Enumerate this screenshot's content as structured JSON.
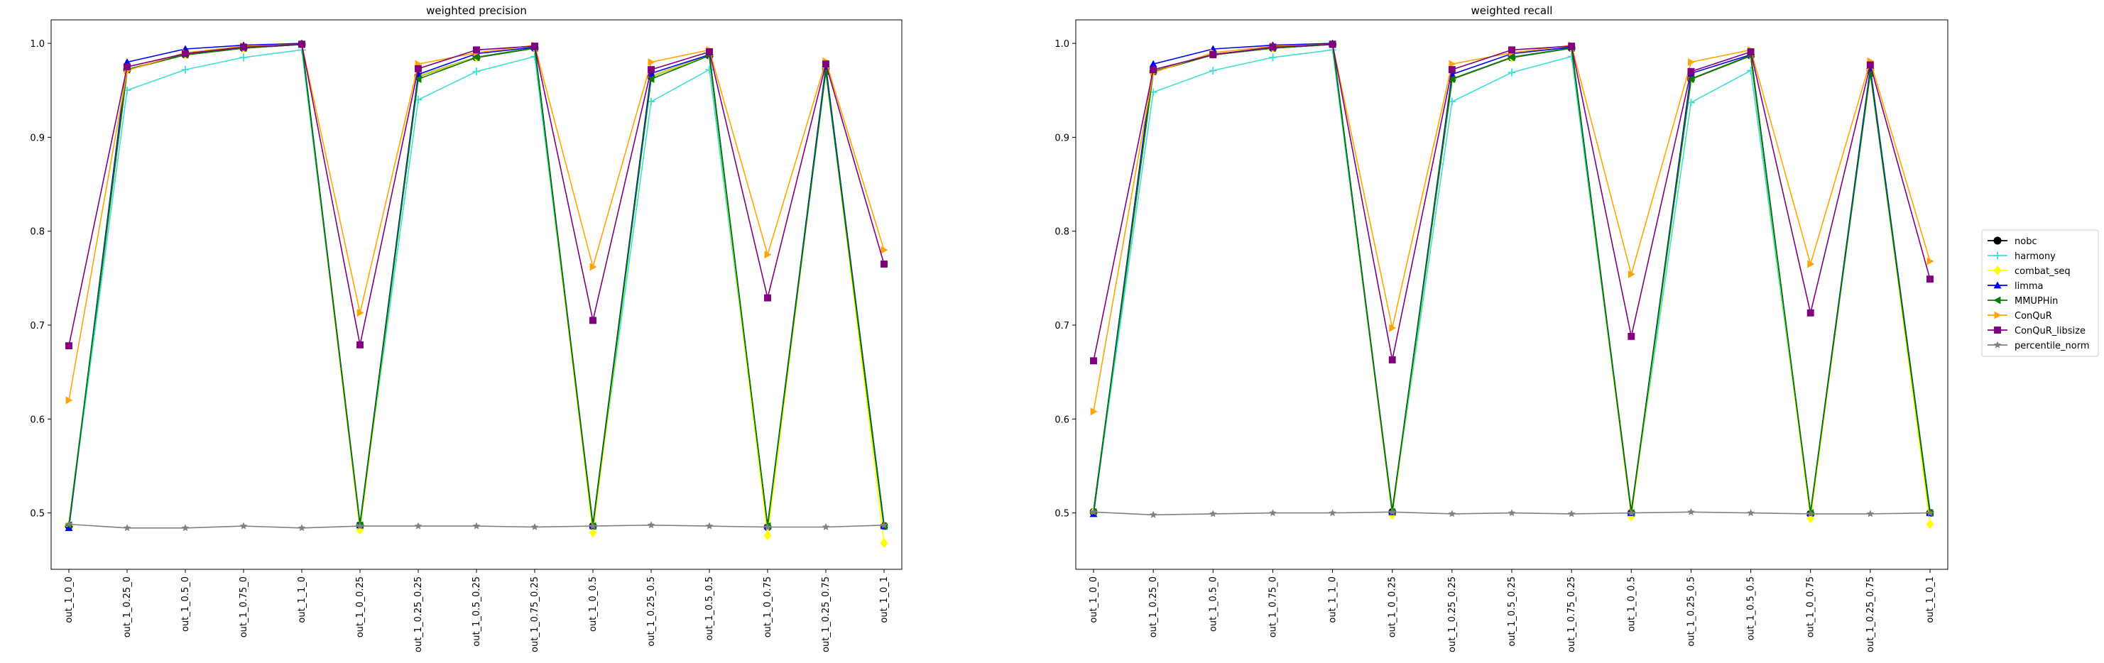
{
  "chart_data": [
    {
      "type": "line",
      "title": "weighted precision",
      "xlabel": "",
      "ylabel": "",
      "ylim": [
        0.44,
        1.025
      ],
      "yticks": [
        0.5,
        0.6,
        0.7,
        0.8,
        0.9,
        1.0
      ],
      "ytick_labels": [
        "0.5",
        "0.6",
        "0.7",
        "0.8",
        "0.9",
        "1.0"
      ],
      "grid": false,
      "categories": [
        "out_1_0_0",
        "out_1_0.25_0",
        "out_1_0.5_0",
        "out_1_0.75_0",
        "out_1_1_0",
        "out_1_0_0.25",
        "out_1_0.25_0.25",
        "out_1_0.5_0.25",
        "out_1_0.75_0.25",
        "out_1_0_0.5",
        "out_1_0.25_0.5",
        "out_1_0.5_0.5",
        "out_1_0_0.75",
        "out_1_0.25_0.75",
        "out_1_0_1"
      ],
      "series": [
        {
          "name": "nobc",
          "values": [
            0.486,
            0.972,
            0.988,
            0.995,
            0.999,
            0.487,
            0.965,
            0.985,
            0.995,
            0.486,
            0.965,
            0.987,
            0.485,
            0.974,
            0.486
          ]
        },
        {
          "name": "harmony",
          "values": [
            0.487,
            0.95,
            0.972,
            0.985,
            0.993,
            0.488,
            0.94,
            0.97,
            0.986,
            0.486,
            0.938,
            0.972,
            0.485,
            0.974,
            0.486
          ]
        },
        {
          "name": "combat_seq",
          "values": [
            0.487,
            0.972,
            0.988,
            0.995,
            0.999,
            0.482,
            0.965,
            0.985,
            0.995,
            0.479,
            0.965,
            0.987,
            0.476,
            0.974,
            0.468
          ]
        },
        {
          "name": "limma",
          "values": [
            0.484,
            0.98,
            0.994,
            0.998,
            1.0,
            0.487,
            0.967,
            0.989,
            0.996,
            0.486,
            0.968,
            0.988,
            0.486,
            0.974,
            0.486
          ]
        },
        {
          "name": "MMUPHin",
          "values": [
            0.487,
            0.972,
            0.988,
            0.995,
            0.999,
            0.487,
            0.962,
            0.985,
            0.995,
            0.486,
            0.962,
            0.987,
            0.486,
            0.97,
            0.486
          ]
        },
        {
          "name": "ConQuR",
          "values": [
            0.62,
            0.971,
            0.99,
            0.997,
            0.999,
            0.713,
            0.978,
            0.99,
            0.998,
            0.762,
            0.98,
            0.993,
            0.775,
            0.981,
            0.78
          ]
        },
        {
          "name": "ConQuR_libsize",
          "values": [
            0.678,
            0.975,
            0.989,
            0.996,
            0.999,
            0.679,
            0.973,
            0.993,
            0.997,
            0.705,
            0.972,
            0.991,
            0.729,
            0.978,
            0.765
          ]
        },
        {
          "name": "percentile_norm",
          "values": [
            0.488,
            0.484,
            0.484,
            0.486,
            0.484,
            0.486,
            0.486,
            0.486,
            0.485,
            0.486,
            0.487,
            0.486,
            0.485,
            0.485,
            0.487
          ]
        }
      ]
    },
    {
      "type": "line",
      "title": "weighted recall",
      "xlabel": "",
      "ylabel": "",
      "ylim": [
        0.44,
        1.025
      ],
      "yticks": [
        0.5,
        0.6,
        0.7,
        0.8,
        0.9,
        1.0
      ],
      "ytick_labels": [
        "0.5",
        "0.6",
        "0.7",
        "0.8",
        "0.9",
        "1.0"
      ],
      "grid": false,
      "categories": [
        "out_1_0_0",
        "out_1_0.25_0",
        "out_1_0.5_0",
        "out_1_0.75_0",
        "out_1_1_0",
        "out_1_0_0.25",
        "out_1_0.25_0.25",
        "out_1_0.5_0.25",
        "out_1_0.75_0.25",
        "out_1_0_0.5",
        "out_1_0.25_0.5",
        "out_1_0.5_0.5",
        "out_1_0_0.75",
        "out_1_0.25_0.75",
        "out_1_0_1"
      ],
      "series": [
        {
          "name": "nobc",
          "values": [
            0.501,
            0.97,
            0.988,
            0.995,
            0.999,
            0.501,
            0.962,
            0.985,
            0.995,
            0.5,
            0.962,
            0.987,
            0.499,
            0.972,
            0.5
          ]
        },
        {
          "name": "harmony",
          "values": [
            0.501,
            0.948,
            0.971,
            0.985,
            0.993,
            0.501,
            0.938,
            0.969,
            0.986,
            0.5,
            0.937,
            0.971,
            0.499,
            0.972,
            0.5
          ]
        },
        {
          "name": "combat_seq",
          "values": [
            0.501,
            0.97,
            0.988,
            0.995,
            0.999,
            0.498,
            0.962,
            0.985,
            0.995,
            0.496,
            0.962,
            0.987,
            0.494,
            0.972,
            0.488
          ]
        },
        {
          "name": "limma",
          "values": [
            0.499,
            0.978,
            0.994,
            0.998,
            1.0,
            0.501,
            0.967,
            0.989,
            0.996,
            0.5,
            0.968,
            0.988,
            0.5,
            0.972,
            0.5
          ]
        },
        {
          "name": "MMUPHin",
          "values": [
            0.501,
            0.97,
            0.988,
            0.995,
            0.999,
            0.501,
            0.962,
            0.985,
            0.995,
            0.5,
            0.962,
            0.987,
            0.5,
            0.968,
            0.5
          ]
        },
        {
          "name": "ConQuR",
          "values": [
            0.608,
            0.969,
            0.99,
            0.997,
            0.999,
            0.697,
            0.978,
            0.99,
            0.998,
            0.754,
            0.98,
            0.993,
            0.765,
            0.981,
            0.768
          ]
        },
        {
          "name": "ConQuR_libsize",
          "values": [
            0.662,
            0.972,
            0.988,
            0.996,
            0.999,
            0.663,
            0.972,
            0.993,
            0.997,
            0.688,
            0.97,
            0.991,
            0.713,
            0.977,
            0.749
          ]
        },
        {
          "name": "percentile_norm",
          "values": [
            0.501,
            0.498,
            0.499,
            0.5,
            0.5,
            0.501,
            0.499,
            0.5,
            0.499,
            0.5,
            0.501,
            0.5,
            0.499,
            0.499,
            0.5
          ]
        }
      ]
    }
  ],
  "legend": {
    "placement": "right",
    "entries": [
      {
        "name": "nobc",
        "color": "#000000",
        "marker": "circle"
      },
      {
        "name": "harmony",
        "color": "#40e0d0",
        "marker": "plus"
      },
      {
        "name": "combat_seq",
        "color": "#ffff00",
        "marker": "diamond"
      },
      {
        "name": "limma",
        "color": "#0000ff",
        "marker": "triangle-up"
      },
      {
        "name": "MMUPHin",
        "color": "#008000",
        "marker": "triangle-left"
      },
      {
        "name": "ConQuR",
        "color": "#ffa500",
        "marker": "triangle-right"
      },
      {
        "name": "ConQuR_libsize",
        "color": "#800080",
        "marker": "square"
      },
      {
        "name": "percentile_norm",
        "color": "#808080",
        "marker": "star"
      }
    ]
  }
}
